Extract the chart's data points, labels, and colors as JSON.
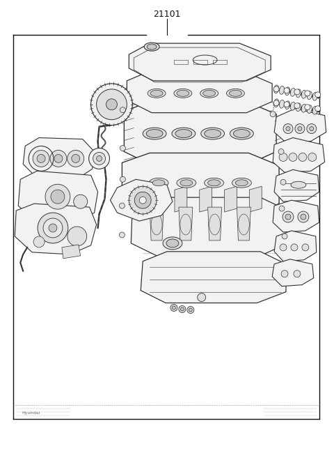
{
  "title": "21101",
  "bg_color": "#ffffff",
  "border_color": "#111111",
  "line_color": "#333333",
  "text_color": "#111111",
  "fig_width": 4.8,
  "fig_height": 6.57,
  "dpi": 100,
  "title_fontsize": 9,
  "fill_light": "#f2f2f2",
  "fill_mid": "#e0e0e0",
  "fill_dark": "#c8c8c8"
}
